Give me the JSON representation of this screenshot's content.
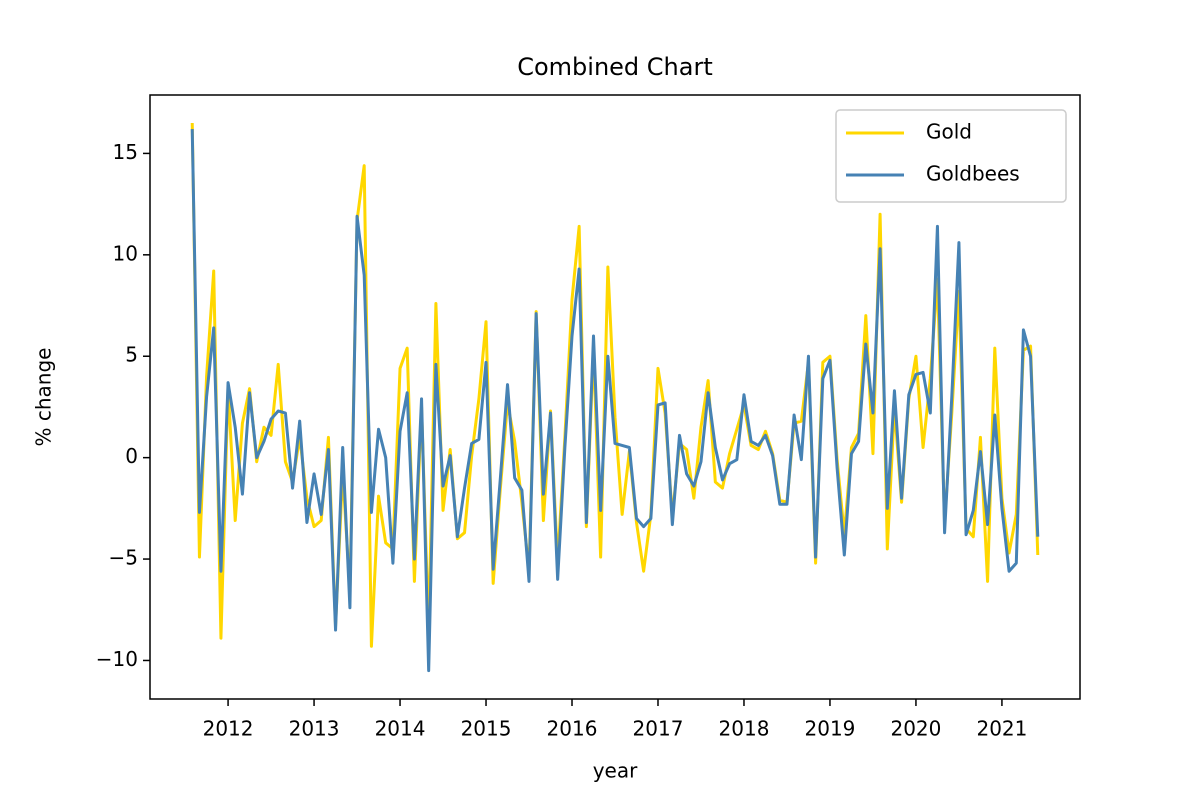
{
  "chart_data": {
    "type": "line",
    "title": "Combined Chart",
    "x_label": "year",
    "y_label": "% change",
    "x": [
      2011.583,
      2011.667,
      2011.75,
      2011.833,
      2011.917,
      2012,
      2012.083,
      2012.167,
      2012.25,
      2012.333,
      2012.417,
      2012.5,
      2012.583,
      2012.667,
      2012.75,
      2012.833,
      2012.917,
      2013,
      2013.083,
      2013.167,
      2013.25,
      2013.333,
      2013.417,
      2013.5,
      2013.583,
      2013.667,
      2013.75,
      2013.833,
      2013.917,
      2014,
      2014.083,
      2014.167,
      2014.25,
      2014.333,
      2014.417,
      2014.5,
      2014.583,
      2014.667,
      2014.75,
      2014.833,
      2014.917,
      2015,
      2015.083,
      2015.167,
      2015.25,
      2015.333,
      2015.417,
      2015.5,
      2015.583,
      2015.667,
      2015.75,
      2015.833,
      2015.917,
      2016,
      2016.083,
      2016.167,
      2016.25,
      2016.333,
      2016.417,
      2016.5,
      2016.583,
      2016.667,
      2016.75,
      2016.833,
      2016.917,
      2017,
      2017.083,
      2017.167,
      2017.25,
      2017.333,
      2017.417,
      2017.5,
      2017.583,
      2017.667,
      2017.75,
      2017.833,
      2017.917,
      2018,
      2018.083,
      2018.167,
      2018.25,
      2018.333,
      2018.417,
      2018.5,
      2018.583,
      2018.667,
      2018.75,
      2018.833,
      2018.917,
      2019,
      2019.083,
      2019.167,
      2019.25,
      2019.333,
      2019.417,
      2019.5,
      2019.583,
      2019.667,
      2019.75,
      2019.833,
      2019.917,
      2020,
      2020.083,
      2020.167,
      2020.25,
      2020.333,
      2020.417,
      2020.5,
      2020.583,
      2020.667,
      2020.75,
      2020.833,
      2020.917,
      2021,
      2021.083,
      2021.167,
      2021.25,
      2021.333,
      2021.417
    ],
    "series": [
      {
        "name": "Gold",
        "color": "#ffd700",
        "values": [
          16.5,
          -4.9,
          4,
          9.2,
          -8.9,
          3.5,
          -3.1,
          1.7,
          3.4,
          -0.2,
          1.5,
          1.1,
          4.6,
          -0.2,
          -1.2,
          1,
          -2,
          -3.4,
          -3.1,
          1,
          -8.3,
          -0.7,
          -6.6,
          11.7,
          14.4,
          -9.3,
          -1.9,
          -4.2,
          -4.5,
          4.4,
          5.4,
          -6.1,
          2.5,
          -8.6,
          7.6,
          -2.6,
          0.4,
          -4,
          -3.7,
          0.1,
          2.9,
          6.7,
          -6.2,
          -1.5,
          2.7,
          0.8,
          -2.2,
          -5.6,
          7.2,
          -3.1,
          2.3,
          -5.2,
          1,
          7.8,
          11.4,
          -3.4,
          5.4,
          -4.9,
          9.4,
          2,
          -2.8,
          0.3,
          -3.2,
          -5.6,
          -2.8,
          4.4,
          2.2,
          -2.9,
          0.7,
          0.4,
          -2,
          1.5,
          3.8,
          -1.2,
          -1.5,
          0.2,
          1.4,
          2.6,
          0.6,
          0.4,
          1.3,
          0.2,
          -2.1,
          -2.2,
          1.7,
          1.8,
          4.7,
          -5.2,
          4.7,
          5,
          -0.1,
          -3.8,
          0.5,
          1.2,
          7,
          0.2,
          12,
          -4.5,
          2.5,
          -2.2,
          2.9,
          5,
          0.5,
          3.9,
          8.8,
          -3.2,
          2.2,
          8.2,
          -3.5,
          -3.9,
          1,
          -6.1,
          5.4,
          -2,
          -4.7,
          -2.8,
          5.3,
          5.5,
          -4.8
        ]
      },
      {
        "name": "Goldbees",
        "color": "#4682b4",
        "values": [
          16.2,
          -2.7,
          3,
          6.4,
          -5.6,
          3.7,
          1.5,
          -1.8,
          3.2,
          0,
          0.8,
          1.9,
          2.3,
          2.2,
          -1.5,
          1.8,
          -3.2,
          -0.8,
          -2.8,
          0.4,
          -8.5,
          0.5,
          -7.4,
          11.9,
          9,
          -2.7,
          1.4,
          0,
          -5.2,
          1.3,
          3.2,
          -5,
          2.9,
          -10.5,
          4.6,
          -1.4,
          0.1,
          -3.9,
          -1.5,
          0.7,
          0.9,
          4.7,
          -5.5,
          -1,
          3.6,
          -1,
          -1.6,
          -6.1,
          7.1,
          -1.8,
          2.2,
          -6,
          0.5,
          6,
          9.3,
          -3.2,
          6,
          -2.6,
          5,
          0.7,
          0.6,
          0.5,
          -3,
          -3.4,
          -3,
          2.6,
          2.7,
          -3.3,
          1.1,
          -0.8,
          -1.4,
          -0.2,
          3.2,
          0.5,
          -1.1,
          -0.3,
          -0.1,
          3.1,
          0.8,
          0.6,
          1.1,
          0.1,
          -2.3,
          -2.3,
          2.1,
          -0.1,
          5,
          -4.9,
          3.9,
          4.8,
          -0.5,
          -4.8,
          0.2,
          0.8,
          5.6,
          2.2,
          10.3,
          -2.5,
          3.3,
          -2,
          3.1,
          4.1,
          4.2,
          2.2,
          11.4,
          -3.7,
          3,
          10.6,
          -3.8,
          -2.6,
          0.3,
          -3.3,
          2.1,
          -2.5,
          -5.6,
          -5.2,
          6.3,
          5,
          -3.9
        ]
      }
    ],
    "xlim": [
      2011.092,
      2021.908
    ],
    "xticks": [
      2012,
      2013,
      2014,
      2015,
      2016,
      2017,
      2018,
      2019,
      2020,
      2021
    ],
    "ylim": [
      -11.9,
      17.88
    ],
    "yticks": [
      {
        "value": -10,
        "label": "−10"
      },
      {
        "value": -5,
        "label": "−5"
      },
      0,
      5,
      10,
      15
    ],
    "grid": false,
    "legend": "upper right"
  }
}
